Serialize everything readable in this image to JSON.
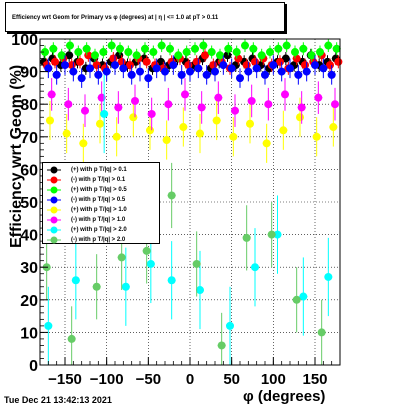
{
  "chart_data": {
    "type": "scatter",
    "title": "Efficiency wrt Geom for Primary vs φ (degrees) at | η | <= 1.0 at pT > 0.11",
    "xlabel": "φ (degrees)",
    "ylabel": "Efficiency wrt Geom (%)",
    "xlim": [
      -180,
      180
    ],
    "ylim": [
      0,
      100
    ],
    "x_ticks": [
      -150,
      -100,
      -50,
      0,
      50,
      100,
      150
    ],
    "y_ticks": [
      0,
      10,
      20,
      30,
      40,
      50,
      60,
      70,
      80,
      90,
      100
    ],
    "grid": true,
    "legend_position": "left-middle",
    "series": [
      {
        "name": "(+) with p T/|q| > 0.1",
        "color": "#000000",
        "x": [
          -175,
          -165,
          -155,
          -145,
          -135,
          -125,
          -115,
          -105,
          -95,
          -85,
          -75,
          -65,
          -55,
          -45,
          -35,
          -25,
          -15,
          -5,
          5,
          15,
          25,
          35,
          45,
          55,
          65,
          75,
          85,
          95,
          105,
          115,
          125,
          135,
          145,
          155,
          165,
          175
        ],
        "y": [
          93,
          94,
          92,
          95,
          93,
          91,
          94,
          92,
          93,
          95,
          92,
          93,
          94,
          91,
          93,
          92,
          94,
          93,
          92,
          94,
          91,
          93,
          95,
          92,
          93,
          94,
          92,
          91,
          93,
          94,
          92,
          93,
          95,
          92,
          93,
          94
        ],
        "err": [
          2,
          2,
          2,
          2,
          2,
          2,
          2,
          2,
          2,
          2,
          2,
          2,
          2,
          2,
          2,
          2,
          2,
          2,
          2,
          2,
          2,
          2,
          2,
          2,
          2,
          2,
          2,
          2,
          2,
          2,
          2,
          2,
          2,
          2,
          2,
          2
        ]
      },
      {
        "name": "(-) with p T/|q| > 0.1",
        "color": "#ff0000",
        "x": [
          -172,
          -162,
          -152,
          -142,
          -132,
          -122,
          -112,
          -102,
          -92,
          -82,
          -72,
          -62,
          -52,
          -42,
          -32,
          -22,
          -12,
          -2,
          8,
          18,
          28,
          38,
          48,
          58,
          68,
          78,
          88,
          98,
          108,
          118,
          128,
          138,
          148,
          158,
          168,
          178
        ],
        "y": [
          92,
          93,
          94,
          92,
          93,
          95,
          92,
          91,
          94,
          93,
          92,
          94,
          93,
          92,
          91,
          93,
          94,
          92,
          93,
          95,
          92,
          93,
          91,
          94,
          92,
          93,
          94,
          92,
          93,
          91,
          94,
          92,
          93,
          95,
          92,
          93
        ],
        "err": [
          2,
          2,
          2,
          2,
          2,
          2,
          2,
          2,
          2,
          2,
          2,
          2,
          2,
          2,
          2,
          2,
          2,
          2,
          2,
          2,
          2,
          2,
          2,
          2,
          2,
          2,
          2,
          2,
          2,
          2,
          2,
          2,
          2,
          2,
          2,
          2
        ]
      },
      {
        "name": "(+) with p T/|q| > 0.5",
        "color": "#00ff00",
        "x": [
          -174,
          -164,
          -154,
          -144,
          -134,
          -124,
          -114,
          -104,
          -94,
          -84,
          -74,
          -64,
          -54,
          -44,
          -34,
          -24,
          -14,
          -4,
          6,
          16,
          26,
          36,
          46,
          56,
          66,
          76,
          86,
          96,
          106,
          116,
          126,
          136,
          146,
          156,
          166,
          176
        ],
        "y": [
          96,
          97,
          95,
          98,
          96,
          97,
          95,
          96,
          98,
          97,
          96,
          95,
          97,
          96,
          98,
          97,
          95,
          96,
          97,
          98,
          96,
          95,
          97,
          96,
          98,
          97,
          95,
          96,
          97,
          98,
          96,
          97,
          95,
          96,
          98,
          97
        ],
        "err": [
          2,
          2,
          2,
          2,
          2,
          2,
          2,
          2,
          2,
          2,
          2,
          2,
          2,
          2,
          2,
          2,
          2,
          2,
          2,
          2,
          2,
          2,
          2,
          2,
          2,
          2,
          2,
          2,
          2,
          2,
          2,
          2,
          2,
          2,
          2,
          2
        ]
      },
      {
        "name": "(-) with p T/|q| > 0.5",
        "color": "#0000ff",
        "x": [
          -170,
          -160,
          -150,
          -140,
          -130,
          -120,
          -110,
          -100,
          -90,
          -80,
          -70,
          -60,
          -50,
          -40,
          -30,
          -20,
          -10,
          0,
          10,
          20,
          30,
          40,
          50,
          60,
          70,
          80,
          90,
          100,
          110,
          120,
          130,
          140,
          150,
          160,
          170
        ],
        "y": [
          91,
          89,
          92,
          90,
          88,
          91,
          89,
          90,
          92,
          91,
          89,
          90,
          88,
          91,
          90,
          92,
          89,
          90,
          91,
          89,
          90,
          92,
          91,
          88,
          90,
          91,
          89,
          92,
          90,
          91,
          89,
          90,
          92,
          91,
          89
        ],
        "err": [
          3,
          3,
          3,
          3,
          3,
          3,
          3,
          3,
          3,
          3,
          3,
          3,
          3,
          3,
          3,
          3,
          3,
          3,
          3,
          3,
          3,
          3,
          3,
          3,
          3,
          3,
          3,
          3,
          3,
          3,
          3,
          3,
          3,
          3,
          3
        ]
      },
      {
        "name": "(+) with p T/|q| > 1.0",
        "color": "#ffff00",
        "x": [
          -168,
          -148,
          -128,
          -108,
          -88,
          -68,
          -48,
          -28,
          -8,
          12,
          32,
          52,
          72,
          92,
          112,
          132,
          152,
          172
        ],
        "y": [
          75,
          71,
          68,
          74,
          70,
          76,
          72,
          69,
          73,
          71,
          75,
          70,
          74,
          68,
          72,
          76,
          70,
          73
        ],
        "err": [
          6,
          6,
          6,
          6,
          6,
          6,
          6,
          6,
          6,
          6,
          6,
          6,
          6,
          6,
          6,
          6,
          6,
          6
        ]
      },
      {
        "name": "(-) with p T/|q| > 1.0",
        "color": "#ff00ff",
        "x": [
          -166,
          -146,
          -126,
          -106,
          -86,
          -66,
          -46,
          -26,
          -6,
          14,
          34,
          54,
          74,
          94,
          114,
          134,
          154,
          174
        ],
        "y": [
          83,
          80,
          78,
          82,
          79,
          81,
          77,
          80,
          83,
          79,
          82,
          78,
          81,
          80,
          83,
          79,
          82,
          80
        ],
        "err": [
          5,
          5,
          5,
          5,
          5,
          5,
          5,
          5,
          5,
          5,
          5,
          5,
          5,
          5,
          5,
          5,
          5,
          5
        ]
      },
      {
        "name": "(+) with p T/|q| > 2.0",
        "color": "#00ffff",
        "x": [
          -170,
          -137,
          -103,
          -77,
          -47,
          -22,
          12,
          48,
          78,
          105,
          136,
          166
        ],
        "y": [
          12,
          26,
          77,
          24,
          31,
          26,
          23,
          12,
          30,
          40,
          21,
          27
        ],
        "err": [
          12,
          12,
          12,
          12,
          12,
          12,
          12,
          12,
          12,
          12,
          12,
          12
        ]
      },
      {
        "name": "(-) with p T/|q| > 2.0",
        "color": "#66cc66",
        "x": [
          -172,
          -142,
          -112,
          -82,
          -52,
          -22,
          8,
          38,
          68,
          98,
          128,
          158
        ],
        "y": [
          30,
          8,
          24,
          33,
          35,
          52,
          31,
          6,
          39,
          40,
          20,
          10
        ],
        "err": [
          10,
          10,
          10,
          10,
          10,
          10,
          10,
          10,
          10,
          10,
          10,
          10
        ]
      }
    ]
  },
  "date_label": "Tue Dec 21 13:42:13 2021"
}
